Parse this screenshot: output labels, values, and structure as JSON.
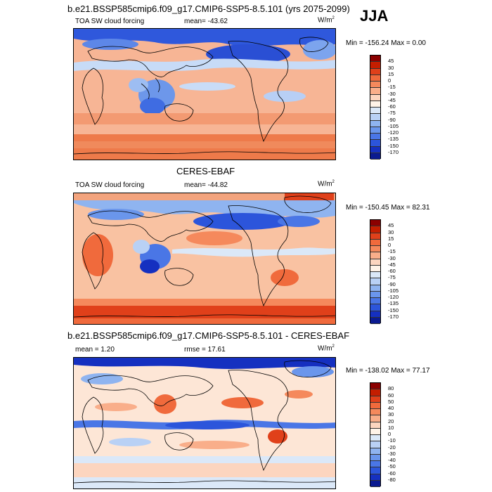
{
  "tag": "JJA",
  "panels": [
    {
      "title": "b.e21.BSSP585cmip6.f09_g17.CMIP6-SSP5-8.5.101 (yrs 2075-2099)",
      "left_label": "TOA SW cloud forcing",
      "center_label": "mean= -43.62",
      "units_base": "W/m",
      "units_exp": "2",
      "minmax": "Min = -156.24 Max =   0.00",
      "colorbar": {
        "levels": [
          "45",
          "30",
          "15",
          "0",
          "-15",
          "-30",
          "-45",
          "-60",
          "-75",
          "-90",
          "-105",
          "-120",
          "-135",
          "-150",
          "-170"
        ],
        "colors": [
          "#8b0000",
          "#c41e00",
          "#e0401a",
          "#f06a3c",
          "#f5895c",
          "#f9ae8a",
          "#fcd5bf",
          "#fff3e8",
          "#dbe8f8",
          "#b9d1f5",
          "#8fb4f0",
          "#6a96ec",
          "#4a76e6",
          "#2c55db",
          "#1530c0",
          "#0a1a90"
        ]
      }
    },
    {
      "title": "CERES-EBAF",
      "left_label": "TOA SW cloud forcing",
      "center_label": "mean= -44.82",
      "units_base": "W/m",
      "units_exp": "2",
      "minmax": "Min = -150.45 Max =  82.31",
      "colorbar": {
        "levels": [
          "45",
          "30",
          "15",
          "0",
          "-15",
          "-30",
          "-45",
          "-60",
          "-75",
          "-90",
          "-105",
          "-120",
          "-135",
          "-150",
          "-170"
        ],
        "colors": [
          "#8b0000",
          "#c41e00",
          "#e0401a",
          "#f06a3c",
          "#f5895c",
          "#f9ae8a",
          "#fcd5bf",
          "#fff3e8",
          "#dbe8f8",
          "#b9d1f5",
          "#8fb4f0",
          "#6a96ec",
          "#4a76e6",
          "#2c55db",
          "#1530c0",
          "#0a1a90"
        ]
      }
    },
    {
      "title": "b.e21.BSSP585cmip6.f09_g17.CMIP6-SSP5-8.5.101 - CERES-EBAF",
      "left_label": "mean =   1.20",
      "center_label": "rmse =  17.61",
      "units_base": "W/m",
      "units_exp": "2",
      "minmax": "Min = -138.02 Max =  77.17",
      "colorbar": {
        "levels": [
          "80",
          "60",
          "50",
          "40",
          "30",
          "20",
          "10",
          "0",
          "-10",
          "-20",
          "-30",
          "-40",
          "-50",
          "-60",
          "-80"
        ],
        "colors": [
          "#8b0000",
          "#c41e00",
          "#e0401a",
          "#f06a3c",
          "#f5895c",
          "#f9ae8a",
          "#fcd5bf",
          "#fff3e8",
          "#dbe8f8",
          "#b9d1f5",
          "#8fb4f0",
          "#6a96ec",
          "#4a76e6",
          "#2c55db",
          "#1530c0",
          "#0a1a90"
        ]
      }
    }
  ]
}
